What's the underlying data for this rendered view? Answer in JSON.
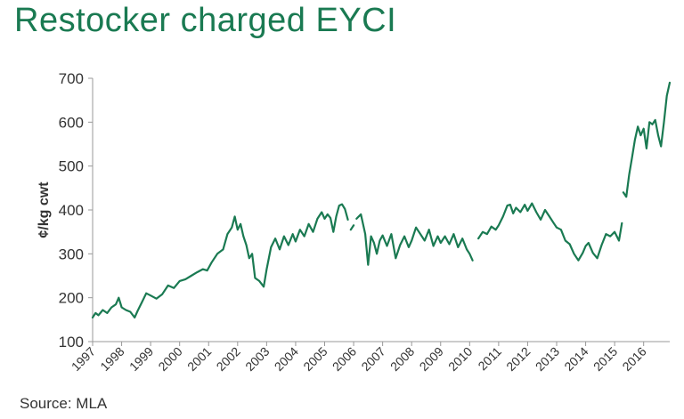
{
  "header": {
    "title": "Restocker charged EYCI"
  },
  "footer": {
    "source": "Source: MLA"
  },
  "colors": {
    "line": "#1a7a52",
    "title": "#1a7a52",
    "axis": "#999999",
    "text": "#333333"
  },
  "chart_data": {
    "type": "line",
    "title": "Restocker charged EYCI",
    "ylabel": "¢/kg cwt",
    "xlabel": "",
    "ylim": [
      100,
      700
    ],
    "yticks": [
      100,
      200,
      300,
      400,
      500,
      600,
      700
    ],
    "xlim": [
      1997,
      2016.9
    ],
    "xticks": [
      "1997",
      "1998",
      "1999",
      "2000",
      "2001",
      "2002",
      "2003",
      "2004",
      "2005",
      "2006",
      "2007",
      "2008",
      "2009",
      "2010",
      "2011",
      "2012",
      "2013",
      "2014",
      "2015",
      "2016"
    ],
    "grid": false,
    "legend": "none",
    "series": [
      {
        "segments": [
          [
            [
              1997.0,
              155
            ],
            [
              1997.1,
              165
            ],
            [
              1997.2,
              160
            ],
            [
              1997.35,
              172
            ],
            [
              1997.5,
              165
            ],
            [
              1997.65,
              178
            ],
            [
              1997.8,
              185
            ],
            [
              1997.9,
              200
            ],
            [
              1998.0,
              178
            ],
            [
              1998.15,
              172
            ],
            [
              1998.3,
              168
            ],
            [
              1998.45,
              155
            ],
            [
              1998.55,
              170
            ],
            [
              1998.7,
              190
            ],
            [
              1998.85,
              210
            ],
            [
              1999.0,
              205
            ],
            [
              1999.2,
              198
            ],
            [
              1999.4,
              208
            ],
            [
              1999.6,
              228
            ],
            [
              1999.8,
              222
            ],
            [
              2000.0,
              238
            ],
            [
              2000.2,
              242
            ],
            [
              2000.4,
              250
            ],
            [
              2000.6,
              258
            ],
            [
              2000.8,
              265
            ],
            [
              2000.95,
              262
            ],
            [
              2001.1,
              280
            ],
            [
              2001.3,
              300
            ],
            [
              2001.5,
              310
            ],
            [
              2001.65,
              345
            ],
            [
              2001.8,
              360
            ],
            [
              2001.9,
              385
            ],
            [
              2002.0,
              355
            ],
            [
              2002.1,
              368
            ],
            [
              2002.2,
              340
            ],
            [
              2002.3,
              320
            ],
            [
              2002.4,
              290
            ],
            [
              2002.5,
              300
            ],
            [
              2002.6,
              245
            ],
            [
              2002.75,
              238
            ],
            [
              2002.9,
              225
            ],
            [
              2003.0,
              265
            ],
            [
              2003.15,
              315
            ],
            [
              2003.3,
              335
            ],
            [
              2003.45,
              310
            ],
            [
              2003.6,
              340
            ],
            [
              2003.75,
              320
            ],
            [
              2003.9,
              345
            ],
            [
              2004.0,
              328
            ],
            [
              2004.15,
              355
            ],
            [
              2004.3,
              340
            ],
            [
              2004.45,
              368
            ],
            [
              2004.6,
              350
            ],
            [
              2004.75,
              380
            ],
            [
              2004.9,
              395
            ],
            [
              2005.0,
              380
            ],
            [
              2005.1,
              390
            ],
            [
              2005.2,
              382
            ],
            [
              2005.3,
              350
            ],
            [
              2005.4,
              385
            ],
            [
              2005.5,
              410
            ],
            [
              2005.6,
              413
            ],
            [
              2005.7,
              402
            ],
            [
              2005.8,
              378
            ]
          ],
          [
            [
              2005.9,
              355
            ],
            [
              2006.0,
              365
            ]
          ],
          [
            [
              2006.1,
              380
            ],
            [
              2006.25,
              390
            ],
            [
              2006.4,
              345
            ],
            [
              2006.5,
              275
            ],
            [
              2006.6,
              340
            ],
            [
              2006.7,
              325
            ],
            [
              2006.8,
              300
            ],
            [
              2006.9,
              330
            ],
            [
              2007.0,
              342
            ],
            [
              2007.15,
              318
            ],
            [
              2007.3,
              345
            ],
            [
              2007.45,
              290
            ],
            [
              2007.6,
              320
            ],
            [
              2007.75,
              340
            ],
            [
              2007.9,
              315
            ],
            [
              2008.0,
              330
            ],
            [
              2008.15,
              360
            ],
            [
              2008.3,
              345
            ],
            [
              2008.45,
              330
            ],
            [
              2008.6,
              355
            ],
            [
              2008.75,
              318
            ],
            [
              2008.9,
              340
            ],
            [
              2009.0,
              325
            ],
            [
              2009.15,
              340
            ],
            [
              2009.3,
              322
            ],
            [
              2009.45,
              345
            ],
            [
              2009.6,
              315
            ],
            [
              2009.75,
              335
            ],
            [
              2009.9,
              310
            ],
            [
              2010.0,
              300
            ],
            [
              2010.1,
              285
            ]
          ],
          [
            [
              2010.3,
              335
            ],
            [
              2010.45,
              350
            ],
            [
              2010.6,
              345
            ],
            [
              2010.75,
              362
            ],
            [
              2010.9,
              355
            ],
            [
              2011.0,
              365
            ],
            [
              2011.15,
              385
            ],
            [
              2011.3,
              410
            ],
            [
              2011.4,
              412
            ],
            [
              2011.5,
              392
            ],
            [
              2011.6,
              405
            ],
            [
              2011.75,
              395
            ],
            [
              2011.9,
              412
            ],
            [
              2012.0,
              398
            ],
            [
              2012.15,
              415
            ],
            [
              2012.3,
              395
            ],
            [
              2012.45,
              378
            ],
            [
              2012.6,
              400
            ],
            [
              2012.75,
              385
            ],
            [
              2012.9,
              370
            ],
            [
              2013.0,
              360
            ],
            [
              2013.15,
              355
            ],
            [
              2013.3,
              330
            ],
            [
              2013.45,
              322
            ],
            [
              2013.6,
              300
            ],
            [
              2013.75,
              285
            ],
            [
              2013.9,
              302
            ],
            [
              2014.0,
              318
            ],
            [
              2014.1,
              325
            ],
            [
              2014.25,
              302
            ],
            [
              2014.4,
              290
            ],
            [
              2014.55,
              320
            ],
            [
              2014.7,
              345
            ],
            [
              2014.85,
              340
            ],
            [
              2015.0,
              350
            ],
            [
              2015.15,
              330
            ],
            [
              2015.25,
              370
            ]
          ],
          [
            [
              2015.3,
              440
            ],
            [
              2015.4,
              430
            ],
            [
              2015.5,
              480
            ],
            [
              2015.6,
              520
            ],
            [
              2015.7,
              560
            ],
            [
              2015.8,
              590
            ],
            [
              2015.9,
              570
            ],
            [
              2016.0,
              585
            ],
            [
              2016.1,
              540
            ],
            [
              2016.2,
              600
            ],
            [
              2016.3,
              595
            ],
            [
              2016.4,
              605
            ],
            [
              2016.5,
              570
            ],
            [
              2016.6,
              545
            ],
            [
              2016.7,
              600
            ],
            [
              2016.8,
              660
            ],
            [
              2016.9,
              690
            ]
          ]
        ]
      }
    ]
  }
}
